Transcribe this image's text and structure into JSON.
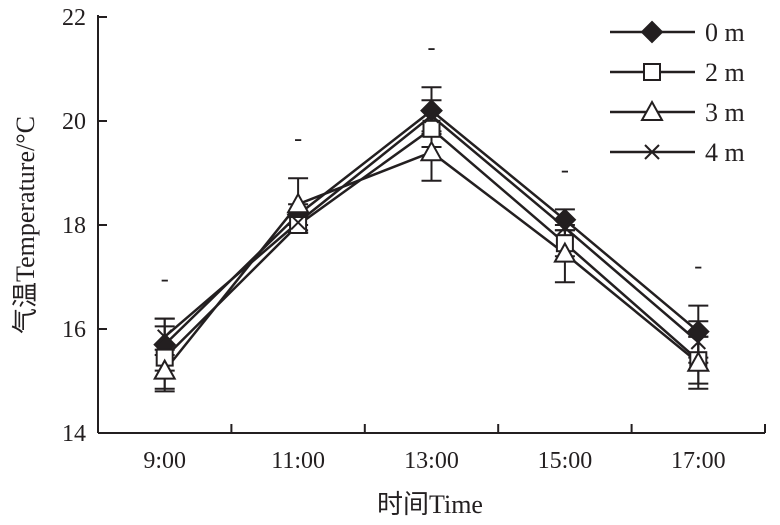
{
  "chart_data": {
    "type": "line",
    "xlabel": "时间Time",
    "ylabel": "气温Temperature/°C",
    "ylim": [
      14,
      22
    ],
    "yticks": [
      14,
      16,
      18,
      20,
      22
    ],
    "categories": [
      "9:00",
      "11:00",
      "13:00",
      "15:00",
      "17:00"
    ],
    "grid": false,
    "legend": "top-right",
    "annotations": [
      "-",
      "-",
      "-",
      "-",
      "-"
    ],
    "series": [
      {
        "name": "0 m",
        "marker": "diamond-filled",
        "values": [
          15.7,
          18.2,
          20.2,
          18.1,
          15.95
        ],
        "errors": [
          0.5,
          0.2,
          0.45,
          0.2,
          0.5
        ]
      },
      {
        "name": "2 m",
        "marker": "square-open",
        "values": [
          15.45,
          18.0,
          19.85,
          17.65,
          15.4
        ],
        "errors": [
          0.6,
          0.15,
          0.35,
          0.25,
          0.45
        ]
      },
      {
        "name": "3 m",
        "marker": "triangle-open",
        "values": [
          15.2,
          18.4,
          19.4,
          17.45,
          15.35
        ],
        "errors": [
          0.4,
          0.5,
          0.55,
          0.55,
          0.5
        ]
      },
      {
        "name": "4 m",
        "marker": "cross",
        "values": [
          15.85,
          18.05,
          20.1,
          17.95,
          15.75
        ],
        "errors": [
          0.35,
          0.2,
          0.3,
          0.15,
          0.4
        ]
      }
    ]
  }
}
